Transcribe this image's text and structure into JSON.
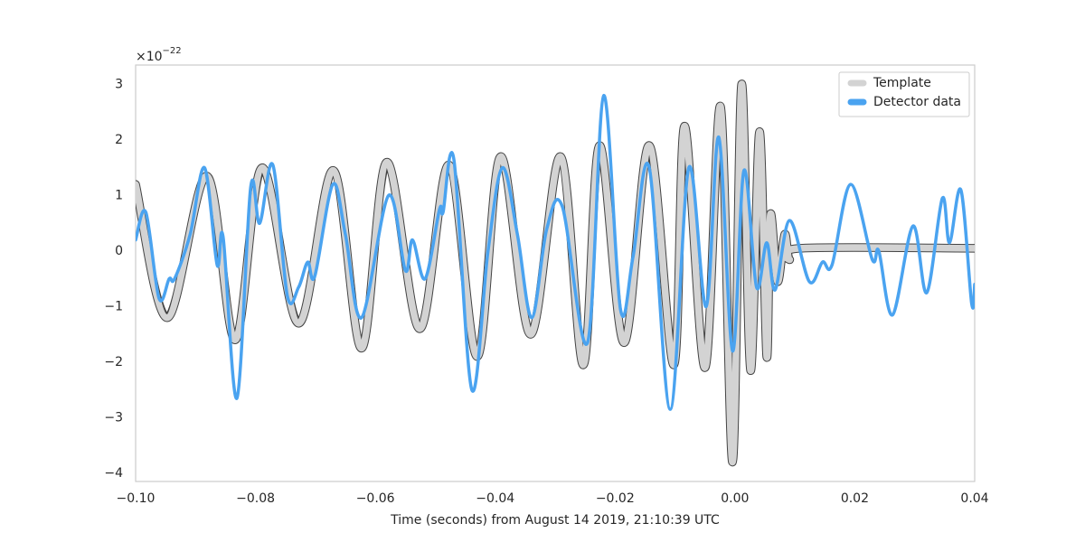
{
  "chart_data": {
    "type": "line",
    "xlabel": "Time (seconds) from August 14 2019, 21:10:39 UTC",
    "offset_text": {
      "base": "×10",
      "exponent": "−22"
    },
    "xlim": [
      -0.1,
      0.04
    ],
    "ylim": [
      -4.15,
      3.35
    ],
    "xticks": [
      {
        "value": -0.1,
        "label": "−0.10"
      },
      {
        "value": -0.08,
        "label": "−0.08"
      },
      {
        "value": -0.06,
        "label": "−0.06"
      },
      {
        "value": -0.04,
        "label": "−0.04"
      },
      {
        "value": -0.02,
        "label": "−0.02"
      },
      {
        "value": 0,
        "label": "0.00"
      },
      0.02,
      0.04
    ],
    "yticks": [
      {
        "value": -4,
        "label": "−4"
      },
      {
        "value": -3,
        "label": "−3"
      },
      {
        "value": -2,
        "label": "−2"
      },
      {
        "value": -1,
        "label": "−1"
      },
      0,
      1,
      2,
      3
    ],
    "grid": false,
    "legend": "upper right",
    "series": [
      {
        "name": "Template",
        "color": "#d3d3d3",
        "x": [
          -0.1,
          -0.0947,
          -0.0881,
          -0.0834,
          -0.0789,
          -0.0728,
          -0.067,
          -0.0623,
          -0.0581,
          -0.0526,
          -0.0477,
          -0.043,
          -0.0391,
          -0.0341,
          -0.0291,
          -0.0253,
          -0.0226,
          -0.0185,
          -0.0143,
          -0.0102,
          -0.0084,
          -0.005,
          -0.0024,
          -0.0004,
          0.0011,
          0.0026,
          0.0041,
          0.0053,
          0.0059,
          0.0071,
          0.0083,
          0.0091,
          0.0109,
          0.04
        ],
        "values": [
          1.2,
          -1.2,
          1.35,
          -1.6,
          1.5,
          -1.3,
          1.45,
          -1.75,
          1.6,
          -1.4,
          1.55,
          -1.9,
          1.7,
          -1.5,
          1.7,
          -2.05,
          1.9,
          -1.65,
          1.9,
          -2.05,
          2.25,
          -2.1,
          2.6,
          -3.8,
          3.0,
          -2.15,
          2.15,
          -1.9,
          0.65,
          -0.55,
          0.3,
          -0.15,
          0.05,
          0.05
        ]
      },
      {
        "name": "Detector data",
        "color": "#4aa3f0",
        "x": [
          -0.1,
          -0.0983,
          -0.0961,
          -0.0944,
          -0.0935,
          -0.0909,
          -0.0885,
          -0.0864,
          -0.0854,
          -0.0831,
          -0.0808,
          -0.0793,
          -0.0771,
          -0.0747,
          -0.0728,
          -0.0713,
          -0.0701,
          -0.0671,
          -0.065,
          -0.0623,
          -0.0578,
          -0.055,
          -0.0538,
          -0.0517,
          -0.0493,
          -0.0487,
          -0.0469,
          -0.0439,
          -0.0412,
          -0.0388,
          -0.0363,
          -0.0339,
          -0.0314,
          -0.0288,
          -0.0246,
          -0.0219,
          -0.0191,
          -0.017,
          -0.0143,
          -0.0108,
          -0.0077,
          -0.0048,
          -0.0027,
          -0.0004,
          0.0015,
          0.0036,
          0.0053,
          0.0067,
          0.0091,
          0.0124,
          0.0146,
          0.0162,
          0.0193,
          0.0229,
          0.024,
          0.0263,
          0.0297,
          0.032,
          0.0346,
          0.0358,
          0.0377,
          0.0395,
          0.04
        ],
        "values": [
          0.2,
          0.7,
          -0.85,
          -0.5,
          -0.5,
          0.3,
          1.5,
          -0.25,
          0.25,
          -2.65,
          1.15,
          0.5,
          1.55,
          -0.8,
          -0.65,
          -0.2,
          -0.45,
          1.2,
          0.3,
          -1.2,
          1.0,
          -0.35,
          0.2,
          -0.5,
          0.75,
          0.7,
          1.65,
          -2.5,
          0.0,
          1.5,
          0.3,
          -1.2,
          0.4,
          0.8,
          -1.65,
          2.8,
          -1.05,
          -0.1,
          1.5,
          -2.85,
          1.5,
          -1.0,
          2.05,
          -1.8,
          1.45,
          -0.65,
          0.15,
          -0.7,
          0.55,
          -0.55,
          -0.2,
          -0.25,
          1.2,
          -0.15,
          0.0,
          -1.15,
          0.45,
          -0.75,
          0.95,
          0.15,
          1.1,
          -0.95,
          -0.6
        ]
      }
    ]
  }
}
